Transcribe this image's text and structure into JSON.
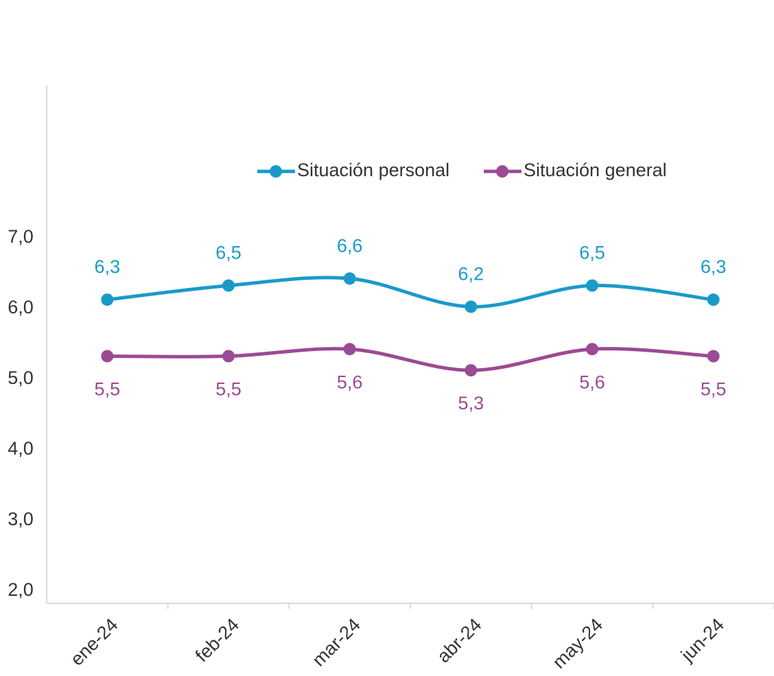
{
  "chart_data": {
    "type": "line",
    "categories": [
      "ene-24",
      "feb-24",
      "mar-24",
      "abr-24",
      "may-24",
      "jun-24"
    ],
    "series": [
      {
        "name": "Situación personal",
        "color": "#1a9ac9",
        "values": [
          6.3,
          6.5,
          6.6,
          6.2,
          6.5,
          6.3
        ],
        "value_labels": [
          "6,3",
          "6,5",
          "6,6",
          "6,2",
          "6,5",
          "6,3"
        ]
      },
      {
        "name": "Situación general",
        "color": "#9b4a94",
        "values": [
          5.5,
          5.5,
          5.6,
          5.3,
          5.6,
          5.5
        ],
        "value_labels": [
          "5,5",
          "5,5",
          "5,6",
          "5,3",
          "5,6",
          "5,5"
        ]
      }
    ],
    "ylim": [
      2,
      9
    ],
    "yticks": [
      {
        "value": 2,
        "label": "2,0"
      },
      {
        "value": 3,
        "label": "3,0"
      },
      {
        "value": 4,
        "label": "4,0"
      },
      {
        "value": 5,
        "label": "5,0"
      },
      {
        "value": 6,
        "label": "6,0"
      },
      {
        "value": 7,
        "label": "7,0"
      }
    ],
    "legend": "top",
    "smooth": true
  }
}
